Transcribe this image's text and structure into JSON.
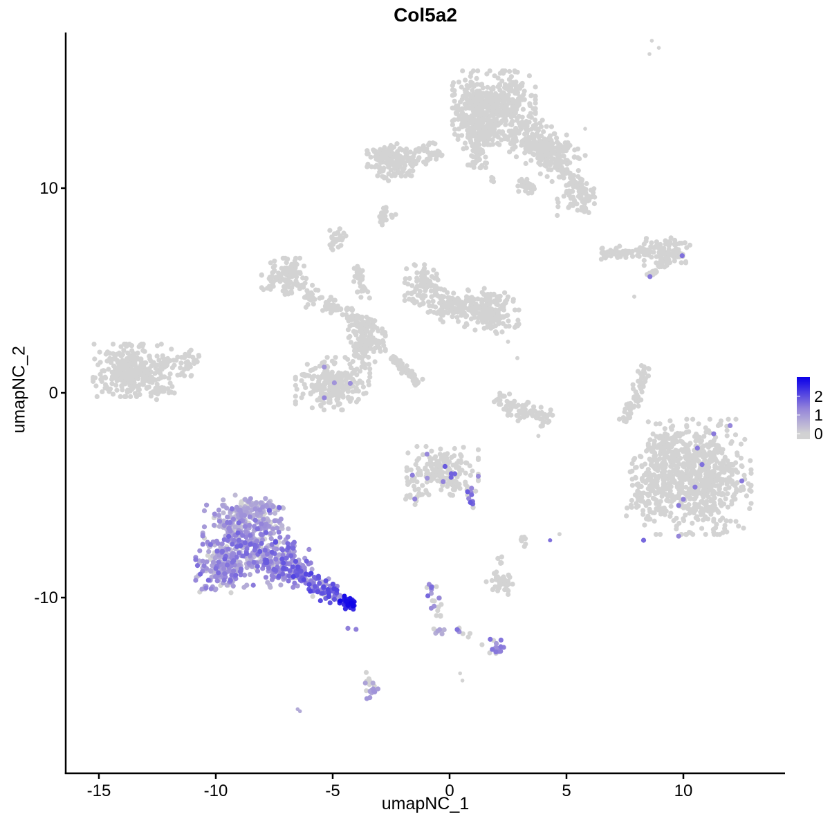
{
  "title": "Col5a2",
  "legend": {
    "ticks": [
      "2",
      "1",
      "0"
    ]
  },
  "chart_data": {
    "type": "scatter",
    "title": "Col5a2",
    "xlabel": "umapNC_1",
    "ylabel": "umapNC_2",
    "x_ticks": [
      -15,
      -10,
      -5,
      0,
      5,
      10
    ],
    "y_ticks": [
      10,
      0,
      -10
    ],
    "xlim": [
      -16.4,
      14.35
    ],
    "ylim": [
      -18.6,
      17.6
    ],
    "grid": false,
    "legend_position": "right",
    "legend_values": [
      2,
      1,
      0
    ],
    "colorscale": {
      "zero": "#d3d3d3",
      "mid": "#9484da",
      "high": "#0c00e8",
      "max_value": 3
    },
    "point_color_grey": "#d3d3d3",
    "seed": 7,
    "point_radius_px": 3.6,
    "clusters": [
      {
        "kind": "blob",
        "cx": 1.9,
        "cy": 14.2,
        "rx": 1.45,
        "ry": 1.25,
        "n": 400
      },
      {
        "kind": "blob",
        "cx": 1.1,
        "cy": 13.1,
        "rx": 0.8,
        "ry": 0.8,
        "n": 120
      },
      {
        "kind": "band",
        "x1": 1.35,
        "y1": 12.8,
        "x2": 1.05,
        "y2": 11.0,
        "w": 0.55,
        "n": 70
      },
      {
        "kind": "band",
        "x1": 2.7,
        "y1": 13.0,
        "x2": 5.3,
        "y2": 10.9,
        "w": 0.95,
        "n": 240
      },
      {
        "kind": "blob",
        "cx": 4.2,
        "cy": 12.0,
        "rx": 0.7,
        "ry": 0.6,
        "n": 70
      },
      {
        "kind": "band",
        "x1": 5.0,
        "y1": 10.7,
        "x2": 6.0,
        "y2": 9.4,
        "w": 0.5,
        "n": 55
      },
      {
        "kind": "blob",
        "cx": 5.4,
        "cy": 9.4,
        "rx": 0.65,
        "ry": 0.6,
        "n": 45
      },
      {
        "kind": "blob",
        "cx": 3.2,
        "cy": 10.1,
        "rx": 0.4,
        "ry": 0.3,
        "n": 25
      },
      {
        "kind": "blob",
        "cx": -2.55,
        "cy": 11.4,
        "rx": 0.8,
        "ry": 0.65,
        "n": 120
      },
      {
        "kind": "band",
        "x1": -1.9,
        "y1": 11.4,
        "x2": -0.4,
        "y2": 11.9,
        "w": 0.5,
        "n": 55
      },
      {
        "kind": "band",
        "x1": -3.2,
        "y1": 10.6,
        "x2": -1.6,
        "y2": 10.7,
        "w": 0.25,
        "n": 18
      },
      {
        "kind": "band",
        "x1": -3.1,
        "y1": 8.4,
        "x2": -2.5,
        "y2": 8.95,
        "w": 0.28,
        "n": 22
      },
      {
        "kind": "blob",
        "cx": -4.9,
        "cy": 7.5,
        "rx": 0.38,
        "ry": 0.42,
        "n": 28
      },
      {
        "kind": "blob",
        "cx": 1.85,
        "cy": 10.35,
        "rx": 0.12,
        "ry": 0.3,
        "n": 4
      },
      {
        "kind": "blob",
        "cx": 3.5,
        "cy": 9.8,
        "rx": 0.2,
        "ry": 0.15,
        "n": 4
      },
      {
        "kind": "dots",
        "pts": [
          [
            8.65,
            17.2,
            0
          ],
          [
            8.95,
            16.85,
            0
          ],
          [
            8.55,
            16.55,
            0
          ],
          [
            5.8,
            12.9,
            0
          ]
        ],
        "r": 2.8
      },
      {
        "kind": "blob",
        "cx": -13.6,
        "cy": 1.1,
        "rx": 1.35,
        "ry": 1.05,
        "n": 320
      },
      {
        "kind": "band",
        "x1": -12.3,
        "y1": 1.7,
        "x2": -10.8,
        "y2": 1.35,
        "w": 0.6,
        "n": 60
      },
      {
        "kind": "blob",
        "cx": -12.4,
        "cy": 0.1,
        "rx": 0.7,
        "ry": 0.4,
        "n": 25
      },
      {
        "kind": "blob",
        "cx": -7.0,
        "cy": 5.6,
        "rx": 0.85,
        "ry": 0.8,
        "n": 120,
        "expr": {
          "pg": 0.99,
          "lo": 1.2,
          "hi": 1.6
        }
      },
      {
        "kind": "band",
        "x1": -6.2,
        "y1": 4.8,
        "x2": -4.6,
        "y2": 4.1,
        "w": 0.5,
        "n": 55
      },
      {
        "kind": "band",
        "x1": -4.5,
        "y1": 4.1,
        "x2": -3.4,
        "y2": 3.2,
        "w": 0.45,
        "n": 50
      },
      {
        "kind": "blob",
        "cx": -3.6,
        "cy": 2.5,
        "rx": 0.7,
        "ry": 0.9,
        "n": 140,
        "expr": {
          "pg": 0.985,
          "lo": 1.0,
          "hi": 1.5
        }
      },
      {
        "kind": "band",
        "x1": -3.9,
        "y1": 6.2,
        "x2": -3.75,
        "y2": 4.6,
        "w": 0.3,
        "n": 35
      },
      {
        "kind": "blob",
        "cx": -5.0,
        "cy": 0.45,
        "rx": 1.3,
        "ry": 1.05,
        "n": 260,
        "expr": {
          "pg": 0.996,
          "lo": 1.0,
          "hi": 1.4
        }
      },
      {
        "kind": "band",
        "x1": -2.55,
        "y1": 1.8,
        "x2": -1.3,
        "y2": 0.5,
        "w": 0.2,
        "n": 70
      },
      {
        "kind": "blob",
        "cx": -1.0,
        "cy": 5.1,
        "rx": 0.75,
        "ry": 0.95,
        "n": 100
      },
      {
        "kind": "blob",
        "cx": -0.15,
        "cy": 4.2,
        "rx": 0.55,
        "ry": 0.6,
        "n": 55
      },
      {
        "kind": "blob",
        "cx": 1.8,
        "cy": 4.0,
        "rx": 0.95,
        "ry": 0.9,
        "n": 160
      },
      {
        "kind": "band",
        "x1": 0.2,
        "y1": 4.4,
        "x2": 1.1,
        "y2": 4.0,
        "w": 0.4,
        "n": 40
      },
      {
        "kind": "band",
        "x1": 2.0,
        "y1": -0.2,
        "x2": 3.2,
        "y2": -0.95,
        "w": 0.45,
        "n": 50
      },
      {
        "kind": "band",
        "x1": 3.2,
        "y1": -0.95,
        "x2": 4.35,
        "y2": -1.3,
        "w": 0.4,
        "n": 40
      },
      {
        "kind": "dots",
        "pts": [
          [
            2.5,
            2.5,
            0
          ],
          [
            2.9,
            1.7,
            0
          ],
          [
            3.8,
            -2.1,
            0
          ],
          [
            4.7,
            -6.9,
            0
          ],
          [
            4.3,
            -7.2,
            1.6
          ],
          [
            7.9,
            4.7,
            0
          ]
        ],
        "r": 3.0
      },
      {
        "kind": "band",
        "x1": 6.45,
        "y1": 6.75,
        "x2": 8.5,
        "y2": 6.95,
        "w": 0.35,
        "n": 65
      },
      {
        "kind": "blob",
        "cx": 9.3,
        "cy": 6.9,
        "rx": 0.8,
        "ry": 0.55,
        "n": 95
      },
      {
        "kind": "band",
        "x1": 8.5,
        "y1": 5.7,
        "x2": 9.15,
        "y2": 6.35,
        "w": 0.22,
        "n": 20
      },
      {
        "kind": "dots",
        "pts": [
          [
            9.95,
            6.7,
            1.6
          ],
          [
            8.57,
            5.68,
            1.5
          ]
        ]
      },
      {
        "kind": "band",
        "x1": 8.35,
        "y1": 1.3,
        "x2": 8.05,
        "y2": -0.1,
        "w": 0.28,
        "n": 30
      },
      {
        "kind": "band",
        "x1": 8.05,
        "y1": -0.1,
        "x2": 7.5,
        "y2": -1.4,
        "w": 0.28,
        "n": 28
      },
      {
        "kind": "blob",
        "cx": 10.7,
        "cy": -4.1,
        "rx": 1.8,
        "ry": 2.3,
        "n": 680
      },
      {
        "kind": "blob",
        "cx": 8.6,
        "cy": -4.5,
        "rx": 0.85,
        "ry": 1.6,
        "n": 150
      },
      {
        "kind": "blob",
        "cx": 9.3,
        "cy": -2.6,
        "rx": 0.7,
        "ry": 0.8,
        "n": 60
      },
      {
        "kind": "dots",
        "pts": [
          [
            11.3,
            -2.0,
            1.5
          ],
          [
            10.6,
            -2.7,
            1.5
          ],
          [
            10.8,
            -3.5,
            1.6
          ],
          [
            12.5,
            -4.3,
            1.5
          ],
          [
            10.5,
            -4.6,
            1.5
          ],
          [
            10.0,
            -5.2,
            1.4
          ],
          [
            9.8,
            -5.5,
            1.5
          ],
          [
            8.3,
            -7.2,
            1.7
          ],
          [
            9.8,
            -7.0,
            1.3
          ],
          [
            12.0,
            -1.6,
            1.3
          ]
        ]
      },
      {
        "kind": "blob",
        "cx": -0.3,
        "cy": -3.9,
        "rx": 1.25,
        "ry": 1.05,
        "n": 190,
        "expr": {
          "pg": 0.93,
          "lo": 1.1,
          "hi": 1.9
        }
      },
      {
        "kind": "blob",
        "cx": -1.55,
        "cy": -4.6,
        "rx": 0.3,
        "ry": 0.7,
        "n": 20
      },
      {
        "kind": "band",
        "x1": 0.75,
        "y1": -4.55,
        "x2": 1.05,
        "y2": -5.6,
        "w": 0.2,
        "n": 14,
        "expr": {
          "pg": 0.25,
          "lo": 1.2,
          "hi": 1.9
        }
      },
      {
        "kind": "blob",
        "cx": 2.3,
        "cy": -9.3,
        "rx": 0.6,
        "ry": 0.45,
        "n": 40
      },
      {
        "kind": "blob",
        "cx": 2.2,
        "cy": -8.2,
        "rx": 0.18,
        "ry": 0.25,
        "n": 5
      },
      {
        "kind": "blob",
        "cx": 3.15,
        "cy": -7.3,
        "rx": 0.2,
        "ry": 0.3,
        "n": 8
      },
      {
        "kind": "dots",
        "pts": [
          [
            0.45,
            -13.7,
            0
          ],
          [
            0.55,
            -14.05,
            0
          ]
        ],
        "r": 2.8
      },
      {
        "kind": "band",
        "x1": -0.9,
        "y1": -9.1,
        "x2": -0.4,
        "y2": -11.2,
        "w": 0.22,
        "n": 20,
        "expr": {
          "pg": 0.45,
          "lo": 0.8,
          "hi": 1.8
        }
      },
      {
        "kind": "blob",
        "cx": -0.4,
        "cy": -11.55,
        "rx": 0.3,
        "ry": 0.18,
        "n": 8,
        "expr": {
          "pg": 0.3,
          "lo": 0.5,
          "hi": 0.9
        }
      },
      {
        "kind": "band",
        "x1": 0.35,
        "y1": -11.5,
        "x2": 1.0,
        "y2": -11.9,
        "w": 0.16,
        "n": 9,
        "expr": {
          "pg": 0.45,
          "lo": 0.9,
          "hi": 1.6
        }
      },
      {
        "kind": "blob",
        "cx": 2.0,
        "cy": -12.5,
        "rx": 0.5,
        "ry": 0.38,
        "n": 18,
        "expr": {
          "pg": 0.35,
          "lo": 0.9,
          "hi": 1.7
        }
      },
      {
        "kind": "blob",
        "cx": -3.4,
        "cy": -14.4,
        "rx": 0.3,
        "ry": 0.7,
        "n": 22,
        "expr": {
          "pg": 0.4,
          "lo": 0.5,
          "hi": 1.1
        }
      },
      {
        "kind": "dots",
        "pts": [
          [
            -6.5,
            -15.45,
            0.7
          ],
          [
            -6.4,
            -15.55,
            0.7
          ]
        ],
        "r": 2.8
      },
      {
        "kind": "dots",
        "pts": [
          [
            -4.35,
            -11.5,
            1.4
          ],
          [
            -4.0,
            -11.55,
            1.4
          ]
        ]
      },
      {
        "kind": "blob",
        "cx": -8.6,
        "cy": -7.5,
        "rx": 1.6,
        "ry": 1.55,
        "n": 300,
        "expr": {
          "pg": 0.15,
          "lo": 0.35,
          "hi": 1.8
        }
      },
      {
        "kind": "blob",
        "cx": -9.7,
        "cy": -8.6,
        "rx": 0.95,
        "ry": 0.95,
        "n": 130,
        "expr": {
          "pg": 0.15,
          "lo": 0.35,
          "hi": 1.7
        }
      },
      {
        "kind": "blob",
        "cx": -8.4,
        "cy": -5.6,
        "rx": 1.05,
        "ry": 0.55,
        "n": 90,
        "expr": {
          "pg": 0.2,
          "lo": 0.3,
          "hi": 1.1
        }
      },
      {
        "kind": "blob",
        "cx": -8.9,
        "cy": -6.3,
        "rx": 1.3,
        "ry": 0.8,
        "n": 110,
        "expr": {
          "pg": 0.2,
          "lo": 0.3,
          "hi": 1.4
        }
      },
      {
        "kind": "blob",
        "cx": -7.1,
        "cy": -8.4,
        "rx": 0.95,
        "ry": 0.9,
        "n": 130,
        "expr": {
          "pg": 0.12,
          "lo": 0.5,
          "hi": 2.0
        }
      },
      {
        "kind": "band",
        "x1": -6.6,
        "y1": -8.7,
        "x2": -4.7,
        "y2": -10.0,
        "w": 0.55,
        "n": 120,
        "expr": {
          "pg": 0.12,
          "lo": 0.6,
          "hi": 2.2
        }
      },
      {
        "kind": "blob",
        "cx": -4.3,
        "cy": -10.25,
        "rx": 0.33,
        "ry": 0.26,
        "n": 40,
        "expr": {
          "pg": 0.02,
          "lo": 2.2,
          "hi": 3.0
        }
      }
    ]
  }
}
